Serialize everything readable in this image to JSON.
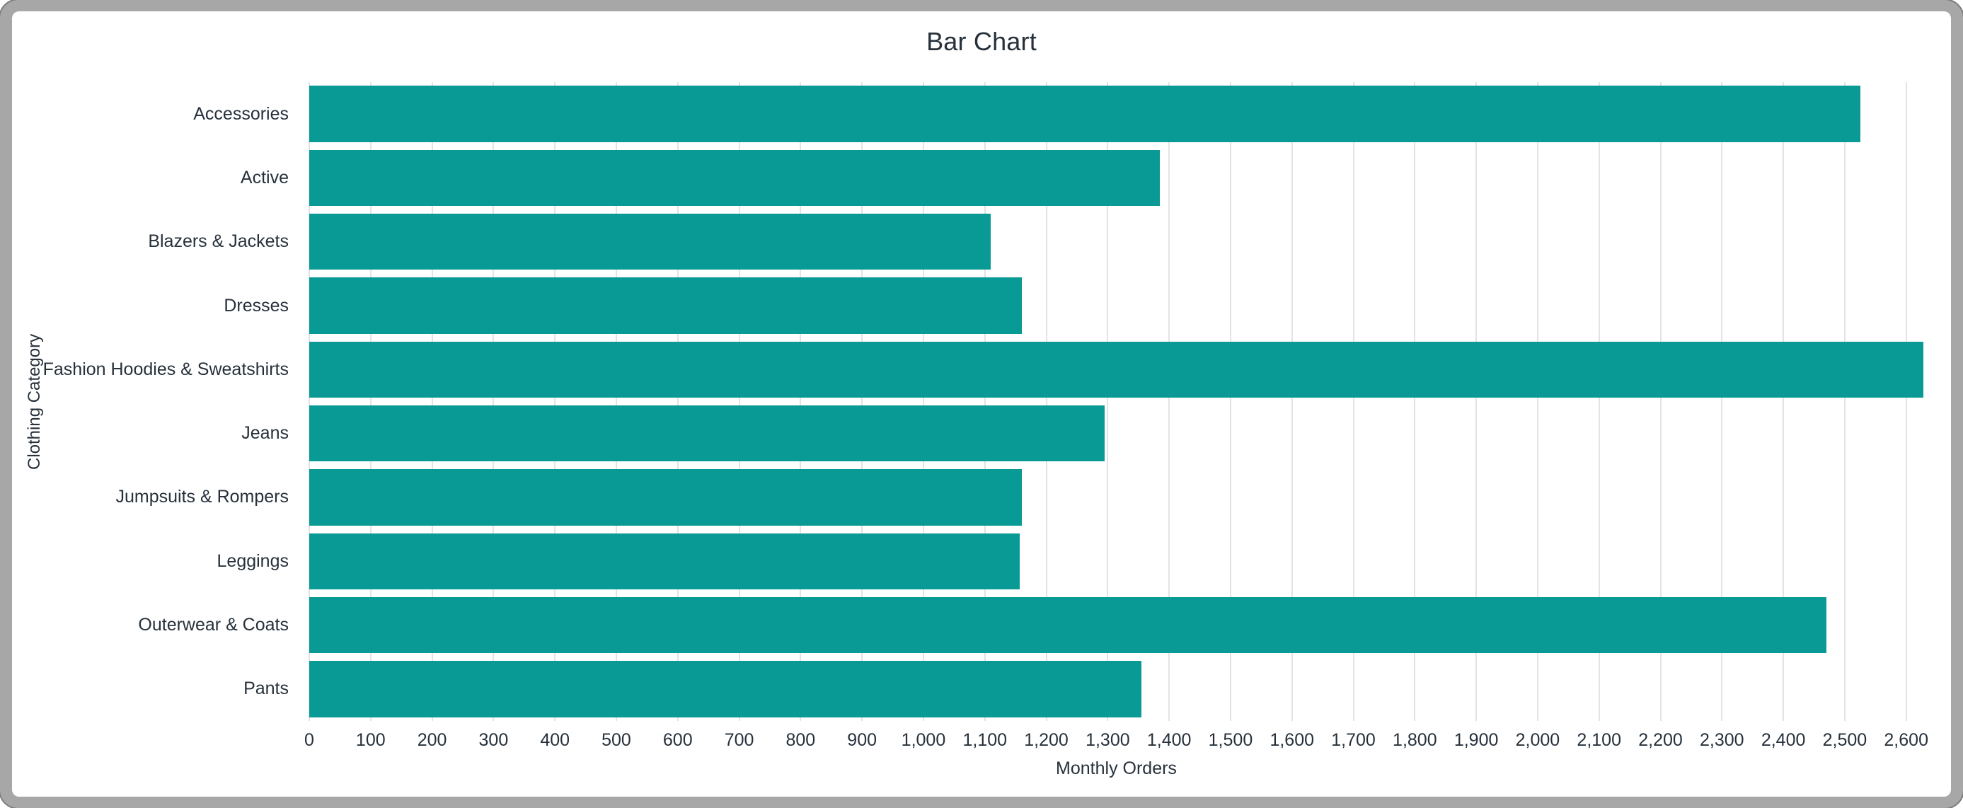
{
  "window": {
    "frame_color": "#a7a7a7",
    "background": "#ffffff"
  },
  "chart_data": {
    "type": "bar",
    "orientation": "horizontal",
    "title": "Bar Chart",
    "xlabel": "Monthly Orders",
    "ylabel": "Clothing Category",
    "categories": [
      "Accessories",
      "Active",
      "Blazers & Jackets",
      "Dresses",
      "Fashion Hoodies & Sweatshirts",
      "Jeans",
      "Jumpsuits & Rompers",
      "Leggings",
      "Outerwear & Coats",
      "Pants"
    ],
    "values": [
      2525,
      1385,
      1110,
      1160,
      2628,
      1295,
      1160,
      1157,
      2470,
      1355
    ],
    "xlim": [
      0,
      2628
    ],
    "x_ticks": [
      0,
      100,
      200,
      300,
      400,
      500,
      600,
      700,
      800,
      900,
      1000,
      1100,
      1200,
      1300,
      1400,
      1500,
      1600,
      1700,
      1800,
      1900,
      2000,
      2100,
      2200,
      2300,
      2400,
      2500,
      2600
    ],
    "x_tick_labels": [
      "0",
      "100",
      "200",
      "300",
      "400",
      "500",
      "600",
      "700",
      "800",
      "900",
      "1,000",
      "1,100",
      "1,200",
      "1,300",
      "1,400",
      "1,500",
      "1,600",
      "1,700",
      "1,800",
      "1,900",
      "2,000",
      "2,100",
      "2,200",
      "2,300",
      "2,400",
      "2,500",
      "2,600"
    ],
    "bar_color": "#0a9a95",
    "gridline_color": "#e3e3e3",
    "text_color": "#27313b",
    "grid": "vertical",
    "legend": "none"
  }
}
